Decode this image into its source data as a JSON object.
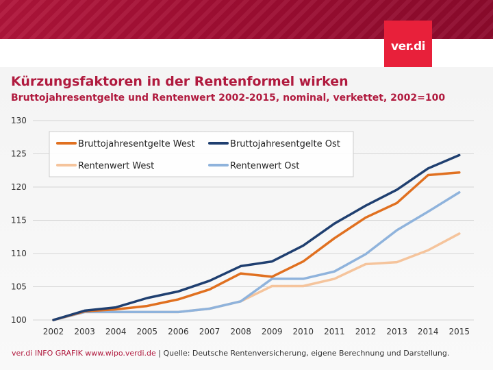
{
  "header": {
    "logo_text": "ver.di"
  },
  "chart_title": "Kürzungsfaktoren in der Rentenformel wirken",
  "chart_subtitle": "Bruttojahresentgelte und Rentenwert 2002-2015, nominal, verkettet, 2002=100",
  "chart_data": {
    "type": "line",
    "title": "Kürzungsfaktoren in der Rentenformel wirken",
    "subtitle": "Bruttojahresentgelte und Rentenwert 2002-2015, nominal, verkettet, 2002=100",
    "xlabel": "",
    "ylabel": "",
    "x": [
      "2002",
      "2003",
      "2004",
      "2005",
      "2006",
      "2007",
      "2008",
      "2009",
      "2010",
      "2011",
      "2012",
      "2013",
      "2014",
      "2015"
    ],
    "ylim": [
      100,
      130
    ],
    "yticks": [
      100,
      105,
      110,
      115,
      120,
      125,
      130
    ],
    "grid": true,
    "legend_position": "top-left",
    "series": [
      {
        "name": "Bruttojahresentgelte West",
        "color": "#e07020",
        "values": [
          100.0,
          101.3,
          101.6,
          102.1,
          103.1,
          104.6,
          107.0,
          106.5,
          108.8,
          112.3,
          115.4,
          117.6,
          121.8,
          122.2
        ]
      },
      {
        "name": "Bruttojahresentgelte Ost",
        "color": "#1f3f70",
        "values": [
          100.0,
          101.4,
          101.9,
          103.3,
          104.3,
          105.9,
          108.1,
          108.8,
          111.2,
          114.5,
          117.2,
          119.6,
          122.8,
          124.8
        ]
      },
      {
        "name": "Rentenwert West",
        "color": "#f5c49c",
        "values": [
          100.0,
          101.2,
          101.2,
          101.2,
          101.2,
          101.7,
          102.8,
          105.1,
          105.1,
          106.2,
          108.4,
          108.7,
          110.5,
          113.0
        ]
      },
      {
        "name": "Rentenwert Ost",
        "color": "#8fb3dc",
        "values": [
          100.0,
          101.2,
          101.2,
          101.2,
          101.2,
          101.7,
          102.8,
          106.2,
          106.2,
          107.3,
          109.9,
          113.5,
          116.3,
          119.2
        ]
      }
    ]
  },
  "footer": {
    "credit": "ver.di INFO GRAFIK www.wipo.verdi.de",
    "source": " | Quelle: Deutsche Rentenversicherung, eigene Berechnung und Darstellung."
  }
}
